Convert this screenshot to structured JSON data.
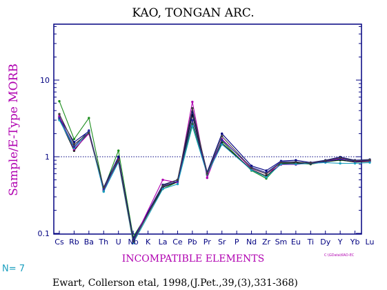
{
  "chart_data": {
    "type": "line",
    "title": "KAO, TONGAN ARC.",
    "xlabel": "INCOMPATIBLE ELEMENTS",
    "ylabel": "Sample/E-Type MORB",
    "yscale": "log",
    "ylim": [
      0.1,
      60
    ],
    "yticks": [
      "0.1",
      "1",
      "10"
    ],
    "reference_line": 1,
    "categories": [
      "Cs",
      "Rb",
      "Ba",
      "Th",
      "U",
      "Nb",
      "K",
      "La",
      "Ce",
      "Pb",
      "Pr",
      "Sr",
      "P",
      "Nd",
      "Zr",
      "Sm",
      "Eu",
      "Ti",
      "Dy",
      "Y",
      "Yb",
      "Lu"
    ],
    "count_label": "N= 7",
    "file_label": "C:\\GData\\KAO-EC",
    "citation": "Ewart, Collerson etal, 1998,(J.Pet.,39,(3),331-368)",
    "series": [
      {
        "color": "#1a8c1a",
        "values": [
          5.3,
          1.7,
          3.2,
          0.38,
          1.2,
          0.09,
          null,
          0.38,
          0.47,
          2.7,
          0.6,
          1.6,
          null,
          0.66,
          0.52,
          0.83,
          0.82,
          0.8,
          0.86,
          0.9,
          0.86,
          0.88
        ]
      },
      {
        "color": "#101010",
        "values": [
          3.1,
          1.2,
          2.1,
          0.36,
          0.95,
          0.08,
          null,
          0.4,
          0.47,
          3.5,
          0.58,
          1.5,
          null,
          0.68,
          0.56,
          0.81,
          0.83,
          0.81,
          0.86,
          0.91,
          0.85,
          0.87
        ]
      },
      {
        "color": "#000080",
        "values": [
          3.3,
          1.55,
          2.15,
          0.4,
          1.0,
          0.085,
          null,
          0.43,
          0.5,
          3.9,
          0.63,
          2.0,
          null,
          0.76,
          0.66,
          0.88,
          0.9,
          0.84,
          0.9,
          0.99,
          0.9,
          0.92
        ]
      },
      {
        "color": "#b000b0",
        "values": [
          3.4,
          1.25,
          2.0,
          0.37,
          0.92,
          0.08,
          null,
          0.5,
          0.46,
          5.2,
          0.53,
          1.7,
          null,
          0.7,
          0.6,
          0.79,
          0.79,
          0.83,
          0.88,
          0.95,
          0.87,
          0.89
        ]
      },
      {
        "color": "#1a9fbf",
        "values": [
          3.0,
          1.3,
          2.1,
          0.35,
          0.85,
          0.075,
          null,
          0.38,
          0.44,
          2.5,
          0.59,
          1.45,
          null,
          0.67,
          0.54,
          0.8,
          0.8,
          0.82,
          0.84,
          0.82,
          0.82,
          0.84
        ]
      },
      {
        "color": "#2a2aa0",
        "values": [
          3.2,
          1.35,
          2.2,
          0.38,
          0.88,
          0.082,
          null,
          0.41,
          0.48,
          3.0,
          0.61,
          1.65,
          null,
          0.73,
          0.62,
          0.86,
          0.86,
          0.82,
          0.87,
          0.93,
          0.88,
          0.9
        ]
      },
      {
        "color": "#404040",
        "values": [
          3.6,
          1.45,
          2.05,
          0.4,
          0.9,
          0.078,
          null,
          0.42,
          0.5,
          4.3,
          0.6,
          1.85,
          null,
          0.71,
          0.6,
          0.84,
          0.85,
          0.83,
          0.89,
          0.97,
          0.89,
          0.91
        ]
      }
    ],
    "colors": {
      "frame": "#000080",
      "axis_text": "#000080",
      "title": "#000000",
      "ylabel": "#b000b0",
      "xlabel": "#b000b0",
      "count": "#1a9fbf",
      "file": "#b000b0",
      "refline": "#000080"
    }
  }
}
